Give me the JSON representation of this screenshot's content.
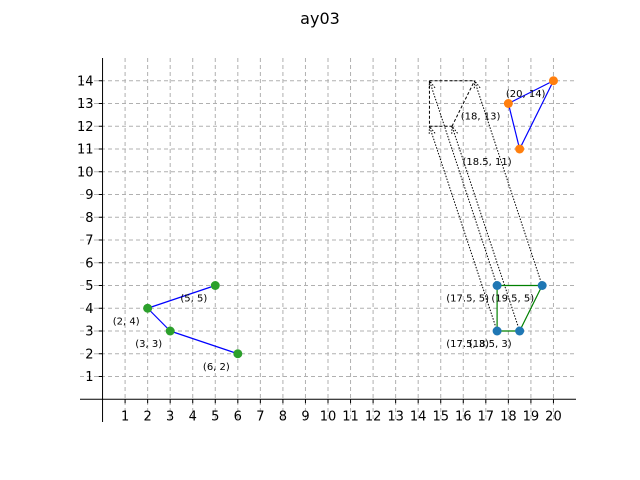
{
  "chart_data": {
    "type": "scatter",
    "title": "ay03",
    "xlabel": "",
    "ylabel": "",
    "xlim": [
      -1,
      21
    ],
    "ylim": [
      -1,
      15
    ],
    "xticks": [
      1,
      2,
      3,
      4,
      5,
      6,
      7,
      8,
      9,
      10,
      11,
      12,
      13,
      14,
      15,
      16,
      17,
      18,
      19,
      20
    ],
    "yticks": [
      1,
      2,
      3,
      4,
      5,
      6,
      7,
      8,
      9,
      10,
      11,
      12,
      13,
      14
    ],
    "grid": true,
    "grid_style": "dashed",
    "axes_through_origin": true,
    "colors": {
      "green_points": "#2ca02c",
      "orange_points": "#ff7f0e",
      "blue_points": "#1f77b4",
      "blue_lines": "#0000ff",
      "green_lines": "#008000",
      "projection_lines": "#000000",
      "grid": "#b0b0b0"
    },
    "triangle_left": {
      "points": [
        [
          2,
          4
        ],
        [
          3,
          3
        ],
        [
          5,
          5
        ],
        [
          6,
          2
        ]
      ],
      "edges": [
        [
          [
            2,
            4
          ],
          [
            5,
            5
          ]
        ],
        [
          [
            2,
            4
          ],
          [
            3,
            3
          ]
        ],
        [
          [
            3,
            3
          ],
          [
            6,
            2
          ]
        ]
      ],
      "point_color": "green_points",
      "line_color": "blue_lines",
      "labels": [
        {
          "at": [
            2,
            4
          ],
          "text": "(2, 4)",
          "anchor": "below-left"
        },
        {
          "at": [
            3,
            3
          ],
          "text": "(3, 3)",
          "anchor": "below-left"
        },
        {
          "at": [
            5,
            5
          ],
          "text": "(5, 5)",
          "anchor": "below-left"
        },
        {
          "at": [
            6,
            2
          ],
          "text": "(6, 2)",
          "anchor": "below-left"
        }
      ]
    },
    "triangle_top_right": {
      "points": [
        [
          18,
          13
        ],
        [
          20,
          14
        ],
        [
          18.5,
          11
        ]
      ],
      "edges": [
        [
          [
            18,
            13
          ],
          [
            20,
            14
          ]
        ],
        [
          [
            20,
            14
          ],
          [
            18.5,
            11
          ]
        ],
        [
          [
            18.5,
            11
          ],
          [
            18,
            13
          ]
        ]
      ],
      "point_color": "orange_points",
      "line_color": "blue_lines",
      "labels": [
        {
          "at": [
            18,
            13
          ],
          "text": "(18, 13)",
          "anchor": "below-left"
        },
        {
          "at": [
            20,
            14
          ],
          "text": "(20, 14)",
          "anchor": "below-left"
        },
        {
          "at": [
            18.5,
            11
          ],
          "text": "(18.5, 11)",
          "anchor": "below-left"
        }
      ]
    },
    "quad_bottom_right": {
      "points": [
        [
          17.5,
          5
        ],
        [
          19.5,
          5
        ],
        [
          17.5,
          3
        ],
        [
          18.5,
          3
        ]
      ],
      "edges": [
        [
          [
            17.5,
            5
          ],
          [
            19.5,
            5
          ]
        ],
        [
          [
            19.5,
            5
          ],
          [
            18.5,
            3
          ]
        ],
        [
          [
            18.5,
            3
          ],
          [
            17.5,
            3
          ]
        ],
        [
          [
            17.5,
            3
          ],
          [
            17.5,
            5
          ]
        ]
      ],
      "point_color": "blue_points",
      "line_color": "green_lines",
      "labels": [
        {
          "at": [
            17.5,
            5
          ],
          "text": "(17.5, 5)",
          "anchor": "below-left"
        },
        {
          "at": [
            19.5,
            5
          ],
          "text": "(19.5, 5)",
          "anchor": "below-left"
        },
        {
          "at": [
            17.5,
            3
          ],
          "text": "(17.5, 3)",
          "anchor": "below-left"
        },
        {
          "at": [
            18.5,
            3
          ],
          "text": "(18.5, 3)",
          "anchor": "below-left"
        }
      ]
    },
    "dashed_quad": {
      "points": [
        [
          14.5,
          14
        ],
        [
          16.5,
          14
        ],
        [
          14.5,
          12
        ],
        [
          15.5,
          12
        ]
      ],
      "edges": [
        [
          [
            14.5,
            14
          ],
          [
            16.5,
            14
          ]
        ],
        [
          [
            14.5,
            14
          ],
          [
            14.5,
            12
          ]
        ],
        [
          [
            14.5,
            12
          ],
          [
            15.5,
            12
          ]
        ],
        [
          [
            15.5,
            12
          ],
          [
            16.5,
            14
          ]
        ]
      ],
      "line_color": "projection_lines"
    },
    "projection_arrows": [
      {
        "from": [
          17.5,
          5
        ],
        "to": [
          14.5,
          14
        ]
      },
      {
        "from": [
          19.5,
          5
        ],
        "to": [
          16.5,
          14
        ]
      },
      {
        "from": [
          17.5,
          3
        ],
        "to": [
          14.5,
          12
        ]
      },
      {
        "from": [
          18.5,
          3
        ],
        "to": [
          15.5,
          12
        ]
      }
    ]
  }
}
